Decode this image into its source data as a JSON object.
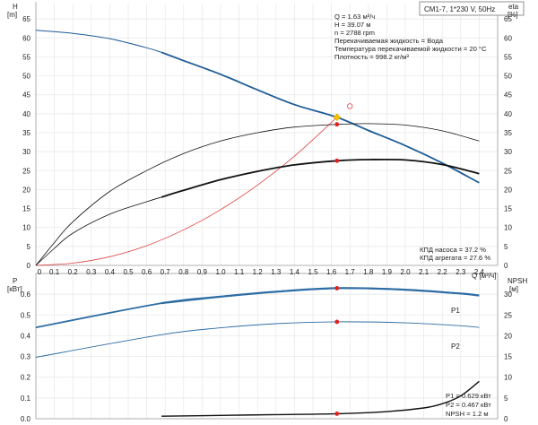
{
  "header_box": "CM1-7, 1*230 V, 50Hz",
  "axes": {
    "top_left_title": "H",
    "top_left_unit": "[m]",
    "top_right_title": "eta",
    "top_right_unit": "[%]",
    "x_title": "Q [м³/ч]",
    "bottom_left_title": "P",
    "bottom_left_unit": "[кВт]",
    "bottom_right_title": "NPSH",
    "bottom_right_unit": "[м]"
  },
  "info_top": {
    "line1": "Q = 1.63 м³/ч",
    "line2": "H = 39.07 м",
    "line3": "n = 2788 rpm",
    "line4": "Перекачиваемая жидкость = Вода",
    "line5": "Температура перекачиваемой жидкости = 20 °C",
    "line6": "Плотность = 998.2 кг/м³"
  },
  "info_eff": {
    "line1": "КПД насоса = 37.2 %",
    "line2": "КПД агрегата = 27.6 %"
  },
  "info_bottom": {
    "line1": "P1 = 0.629 кВт",
    "line2": "P2 = 0.467 кВт",
    "line3": "NPSH = 1.2 м"
  },
  "colors": {
    "head": "#1f5b96",
    "power": "#2e6da4",
    "efficiency": "#111111",
    "system": "#e04040",
    "op_point": "#e02020",
    "duty_marker": "#f2c200",
    "grid": "#e6e6e6",
    "axis": "#999999"
  },
  "chart_data": [
    {
      "type": "line",
      "panel": "head-efficiency",
      "xlabel": "Q [м³/ч]",
      "ylabel": "H [m]",
      "y2label": "eta [%]",
      "xlim": [
        0,
        2.5
      ],
      "ylim": [
        0,
        70
      ],
      "y2lim": [
        0,
        70
      ],
      "x_ticks": [
        0.1,
        0.2,
        0.3,
        0.4,
        0.5,
        0.6,
        0.7,
        0.8,
        0.9,
        1.0,
        1.1,
        1.2,
        1.3,
        1.4,
        1.5,
        1.6,
        1.7,
        1.8,
        1.9,
        2.0,
        2.1,
        2.2,
        2.3,
        2.4
      ],
      "y_ticks": [
        0,
        5,
        10,
        15,
        20,
        25,
        30,
        35,
        40,
        45,
        50,
        55,
        60,
        65
      ],
      "y2_ticks": [
        0,
        5,
        10,
        15,
        20,
        25,
        30,
        35,
        40,
        45,
        50,
        55,
        60,
        65
      ],
      "grid": true,
      "series": [
        {
          "kind": "head-curve-thin",
          "axis": "left",
          "x": [
            0,
            0.2,
            0.4,
            0.6,
            0.68
          ],
          "y": [
            62,
            61.2,
            59.8,
            57.4,
            56.2
          ]
        },
        {
          "kind": "head-curve",
          "axis": "left",
          "x": [
            0.68,
            0.8,
            1.0,
            1.2,
            1.4,
            1.63,
            1.8,
            2.0,
            2.2,
            2.4
          ],
          "y": [
            56.2,
            54.0,
            50.4,
            46.3,
            42.4,
            39.07,
            35.6,
            31.6,
            27.0,
            21.8
          ]
        },
        {
          "kind": "system-curve",
          "axis": "left",
          "x": [
            0,
            0.2,
            0.4,
            0.6,
            0.8,
            1.0,
            1.2,
            1.4,
            1.63
          ],
          "y": [
            0,
            0.6,
            2.3,
            5.2,
            9.4,
            14.7,
            21.2,
            28.8,
            39.07
          ]
        },
        {
          "kind": "pump-efficiency",
          "axis": "right",
          "x": [
            0,
            0.1,
            0.2,
            0.4,
            0.6,
            0.8,
            1.0,
            1.2,
            1.4,
            1.63,
            1.8,
            2.0,
            2.2,
            2.4
          ],
          "y": [
            0,
            6.0,
            11.5,
            19.5,
            25.0,
            29.5,
            32.8,
            35.0,
            36.5,
            37.2,
            37.4,
            37.0,
            35.5,
            32.8
          ]
        },
        {
          "kind": "unit-efficiency-thin",
          "axis": "right",
          "x": [
            0,
            0.1,
            0.2,
            0.4,
            0.6,
            0.68
          ],
          "y": [
            0,
            4.5,
            8.5,
            13.5,
            16.8,
            18.0
          ]
        },
        {
          "kind": "unit-efficiency",
          "axis": "right",
          "x": [
            0.68,
            0.8,
            1.0,
            1.2,
            1.4,
            1.63,
            1.8,
            2.0,
            2.2,
            2.4
          ],
          "y": [
            18.0,
            19.8,
            22.6,
            24.8,
            26.5,
            27.6,
            27.9,
            27.8,
            26.6,
            24.2
          ]
        }
      ],
      "points": [
        {
          "kind": "op",
          "axis": "left",
          "x": 1.63,
          "y": 39.07
        },
        {
          "kind": "op",
          "axis": "right",
          "x": 1.63,
          "y": 37.2
        },
        {
          "kind": "op",
          "axis": "right",
          "x": 1.63,
          "y": 27.6
        },
        {
          "kind": "duty",
          "axis": "left",
          "x": 1.63,
          "y": 39.07
        },
        {
          "kind": "duty-open",
          "axis": "left",
          "x": 1.7,
          "y": 42.0
        }
      ]
    },
    {
      "type": "line",
      "panel": "power-npsh",
      "ylabel": "P [кВт]",
      "y2label": "NPSH [м]",
      "xlim": [
        0,
        2.5
      ],
      "ylim": [
        0,
        0.7
      ],
      "y2lim": [
        0,
        35
      ],
      "y_ticks": [
        0.1,
        0.2,
        0.3,
        0.4,
        0.5,
        0.6
      ],
      "y2_ticks": [
        5,
        10,
        15,
        20,
        25,
        30
      ],
      "series": [
        {
          "name": "P1",
          "axis": "left",
          "x": [
            0,
            0.68,
            1.0,
            1.3,
            1.63,
            2.0,
            2.3,
            2.4
          ],
          "y": [
            0.44,
            0.557,
            0.588,
            0.612,
            0.629,
            0.622,
            0.603,
            0.594
          ]
        },
        {
          "name": "P2",
          "axis": "left",
          "x": [
            0,
            0.68,
            1.0,
            1.3,
            1.63,
            2.0,
            2.3,
            2.4
          ],
          "y": [
            0.296,
            0.405,
            0.438,
            0.458,
            0.467,
            0.462,
            0.448,
            0.44
          ]
        },
        {
          "kind": "npsh",
          "axis": "right",
          "x": [
            0.68,
            1.0,
            1.3,
            1.63,
            1.9,
            2.1,
            2.2,
            2.3,
            2.4
          ],
          "y": [
            0.6,
            0.8,
            1.0,
            1.2,
            1.7,
            2.6,
            3.6,
            5.5,
            9.0
          ]
        }
      ],
      "points": [
        {
          "kind": "op",
          "axis": "left",
          "x": 1.63,
          "y": 0.629
        },
        {
          "kind": "op",
          "axis": "left",
          "x": 1.63,
          "y": 0.467
        },
        {
          "kind": "op",
          "axis": "right",
          "x": 1.63,
          "y": 1.2
        }
      ]
    }
  ]
}
